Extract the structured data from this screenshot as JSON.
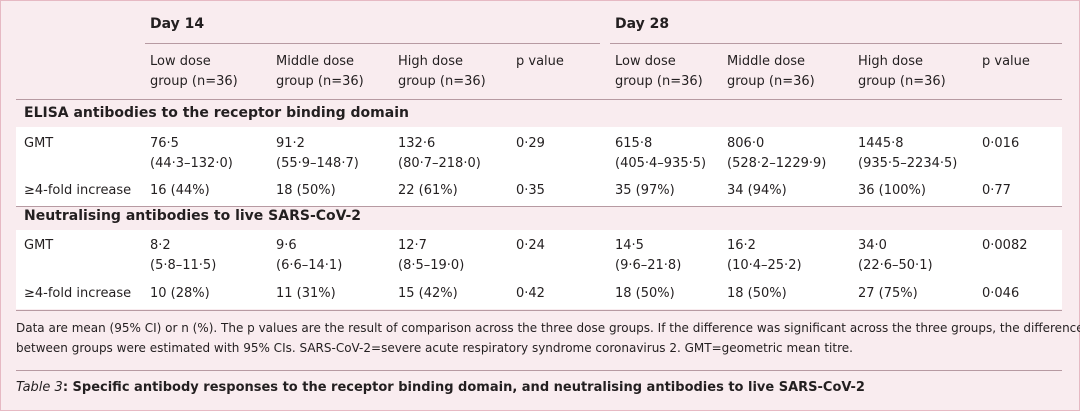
{
  "groups": {
    "day14": "Day 14",
    "day28": "Day 28"
  },
  "columns": [
    {
      "line1": "Low dose",
      "line2": "group (n=36)"
    },
    {
      "line1": "Middle dose",
      "line2": "group (n=36)"
    },
    {
      "line1": "High dose",
      "line2": "group (n=36)"
    },
    {
      "line1": "p value",
      "line2": ""
    },
    {
      "line1": "Low dose",
      "line2": "group (n=36)"
    },
    {
      "line1": "Middle dose",
      "line2": "group (n=36)"
    },
    {
      "line1": "High dose",
      "line2": "group (n=36)"
    },
    {
      "line1": "p value",
      "line2": ""
    }
  ],
  "sections": [
    {
      "title": "ELISA antibodies to the receptor binding domain",
      "rows": [
        {
          "label": "GMT",
          "cells": [
            {
              "l1": "76·5",
              "l2": "(44·3–132·0)"
            },
            {
              "l1": "91·2",
              "l2": "(55·9–148·7)"
            },
            {
              "l1": "132·6",
              "l2": "(80·7–218·0)"
            },
            {
              "l1": "0·29",
              "l2": ""
            },
            {
              "l1": "615·8",
              "l2": "(405·4–935·5)"
            },
            {
              "l1": "806·0",
              "l2": "(528·2–1229·9)"
            },
            {
              "l1": "1445·8",
              "l2": "(935·5–2234·5)"
            },
            {
              "l1": "0·016",
              "l2": ""
            }
          ]
        },
        {
          "label": "≥4-fold increase",
          "cells": [
            {
              "l1": "16 (44%)",
              "l2": ""
            },
            {
              "l1": "18 (50%)",
              "l2": ""
            },
            {
              "l1": "22 (61%)",
              "l2": ""
            },
            {
              "l1": "0·35",
              "l2": ""
            },
            {
              "l1": "35 (97%)",
              "l2": ""
            },
            {
              "l1": "34 (94%)",
              "l2": ""
            },
            {
              "l1": "36 (100%)",
              "l2": ""
            },
            {
              "l1": "0·77",
              "l2": ""
            }
          ]
        }
      ]
    },
    {
      "title": "Neutralising antibodies to live SARS-CoV-2",
      "rows": [
        {
          "label": "GMT",
          "cells": [
            {
              "l1": "8·2",
              "l2": "(5·8–11·5)"
            },
            {
              "l1": "9·6",
              "l2": "(6·6–14·1)"
            },
            {
              "l1": "12·7",
              "l2": "(8·5–19·0)"
            },
            {
              "l1": "0·24",
              "l2": ""
            },
            {
              "l1": "14·5",
              "l2": "(9·6–21·8)"
            },
            {
              "l1": "16·2",
              "l2": "(10·4–25·2)"
            },
            {
              "l1": "34·0",
              "l2": "(22·6–50·1)"
            },
            {
              "l1": "0·0082",
              "l2": ""
            }
          ]
        },
        {
          "label": "≥4-fold increase",
          "cells": [
            {
              "l1": "10 (28%)",
              "l2": ""
            },
            {
              "l1": "11 (31%)",
              "l2": ""
            },
            {
              "l1": "15 (42%)",
              "l2": ""
            },
            {
              "l1": "0·42",
              "l2": ""
            },
            {
              "l1": "18 (50%)",
              "l2": ""
            },
            {
              "l1": "18 (50%)",
              "l2": ""
            },
            {
              "l1": "27 (75%)",
              "l2": ""
            },
            {
              "l1": "0·046",
              "l2": ""
            }
          ]
        }
      ]
    }
  ],
  "footnote": {
    "line1": "Data are mean (95% CI) or n (%). The p values are the result of comparison across the three dose groups. If the difference was significant across the three groups, the differences",
    "line2": "between groups were estimated with 95% CIs. SARS-CoV-2=severe acute respiratory syndrome coronavirus 2. GMT=geometric mean titre."
  },
  "caption": {
    "label": "Table 3",
    "text": ": Specific antibody responses to the receptor binding domain, and neutralising antibodies to live SARS-CoV-2"
  }
}
